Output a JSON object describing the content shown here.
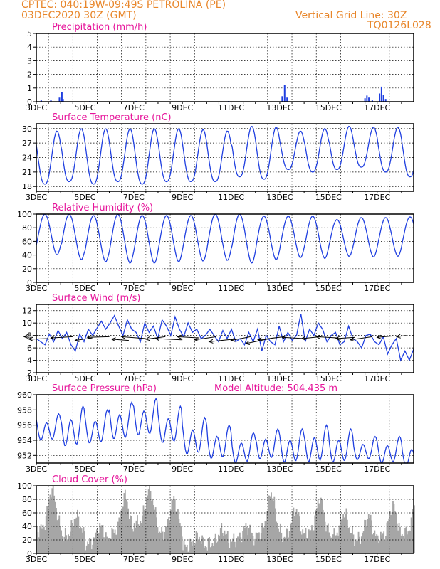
{
  "header": {
    "line1_left": "CPTEC:   040:19W-09:49S   PETROLINA (PE)",
    "line2_left": "03DEC2020 30Z (GMT)",
    "line1_right": "Vertical Grid Line: 30Z",
    "line2_right": "TQ0126L028"
  },
  "colors": {
    "header": "#e8862a",
    "panel_title": "#e6149a",
    "line": "#1f3fe0",
    "bar": "#a6a6a6"
  },
  "panels": {
    "precip": {
      "title": "Precipitation (mm/h)"
    },
    "temp": {
      "title": "Surface Temperature (nC)"
    },
    "rh": {
      "title": "Relative Humidity (%)"
    },
    "wind": {
      "title": "Surface Wind (m/s)"
    },
    "pres": {
      "title": "Surface Pressure (hPa)",
      "extra": "Model Altitude: 504.435 m"
    },
    "cloud": {
      "title": "Cloud Cover (%)"
    }
  },
  "chart_data": [
    {
      "type": "bar",
      "title": "Precipitation (mm/h)",
      "ylim": [
        0,
        5
      ],
      "yticks": [
        "0",
        "1",
        "2",
        "3",
        "4",
        "5"
      ],
      "xlim": [
        3,
        18.5
      ],
      "xtick_labels": [
        "3DEC",
        "5DEC",
        "7DEC",
        "9DEC",
        "11DEC",
        "13DEC",
        "15DEC",
        "17DEC"
      ],
      "grid": true,
      "bars": [
        [
          3.2,
          0.1
        ],
        [
          3.6,
          0.15
        ],
        [
          3.95,
          0.3
        ],
        [
          4.05,
          0.7
        ],
        [
          4.1,
          0.2
        ],
        [
          5.2,
          0.05
        ],
        [
          7.1,
          0.05
        ],
        [
          10.9,
          0.05
        ],
        [
          13.1,
          0.4
        ],
        [
          13.2,
          1.2
        ],
        [
          13.3,
          0.3
        ],
        [
          16.5,
          0.25
        ],
        [
          16.58,
          0.45
        ],
        [
          16.66,
          0.3
        ],
        [
          16.8,
          0.1
        ],
        [
          17.1,
          0.6
        ],
        [
          17.18,
          1.1
        ],
        [
          17.26,
          0.5
        ],
        [
          17.35,
          0.2
        ]
      ]
    },
    {
      "type": "line",
      "title": "Surface Temperature (nC)",
      "ylim": [
        17,
        31
      ],
      "yticks": [
        "18",
        "21",
        "24",
        "27",
        "30"
      ],
      "xlim": [
        3,
        18.5
      ],
      "xtick_labels": [
        "3DEC",
        "5DEC",
        "7DEC",
        "9DEC",
        "11DEC",
        "13DEC",
        "15DEC",
        "17DEC"
      ],
      "grid": true,
      "days_max": [
        29.5,
        30.0,
        30.0,
        30.0,
        30.0,
        30.0,
        29.8,
        29.5,
        30.5,
        30.3,
        29.5,
        30.0,
        30.5,
        30.3,
        30.3,
        30.5
      ],
      "days_min": [
        18.5,
        19.0,
        18.5,
        19.0,
        18.5,
        19.0,
        19.0,
        19.0,
        20.0,
        19.5,
        21.5,
        21.0,
        21.5,
        22.0,
        21.0,
        20.0
      ]
    },
    {
      "type": "line",
      "title": "Relative Humidity (%)",
      "ylim": [
        0,
        100
      ],
      "yticks": [
        "0",
        "20",
        "40",
        "60",
        "80",
        "100"
      ],
      "xlim": [
        3,
        18.5
      ],
      "xtick_labels": [
        "3DEC",
        "5DEC",
        "7DEC",
        "9DEC",
        "11DEC",
        "13DEC",
        "15DEC",
        "17DEC"
      ],
      "grid": true,
      "days_max": [
        100,
        100,
        98,
        100,
        98,
        98,
        98,
        100,
        100,
        97,
        97,
        97,
        92,
        95,
        95,
        96
      ],
      "days_min": [
        40,
        33,
        30,
        28,
        28,
        30,
        31,
        32,
        28,
        33,
        36,
        35,
        38,
        37,
        38,
        40
      ]
    },
    {
      "type": "line",
      "title": "Surface Wind (m/s)",
      "ylim": [
        2,
        13
      ],
      "yticks": [
        "2",
        "4",
        "6",
        "8",
        "10",
        "12"
      ],
      "xlim": [
        3,
        18.5
      ],
      "xtick_labels": [
        "3DEC",
        "5DEC",
        "7DEC",
        "9DEC",
        "11DEC",
        "13DEC",
        "15DEC",
        "17DEC"
      ],
      "grid": true,
      "speed": [
        7.5,
        7.0,
        6.5,
        8.2,
        7.0,
        8.8,
        7.5,
        8.5,
        6.5,
        5.5,
        8.2,
        7.0,
        9.0,
        8.0,
        9.2,
        10.3,
        9.0,
        10.0,
        11.2,
        9.5,
        8.0,
        10.5,
        9.0,
        8.5,
        7.0,
        10.0,
        8.5,
        9.5,
        7.5,
        10.5,
        9.5,
        8.0,
        11.0,
        9.0,
        7.8,
        10.0,
        8.5,
        9.0,
        7.5,
        8.0,
        9.0,
        8.0,
        7.0,
        8.8,
        7.5,
        9.0,
        7.0,
        7.5,
        6.5,
        8.5,
        7.0,
        9.0,
        5.5,
        8.0,
        7.0,
        6.5,
        9.5,
        7.0,
        8.5,
        7.2,
        8.0,
        11.5,
        7.0,
        9.0,
        8.0,
        10.0,
        9.0,
        7.0,
        8.0,
        8.5,
        6.5,
        7.0,
        9.5,
        7.5,
        7.0,
        6.0,
        8.0,
        8.2,
        7.0,
        6.5,
        7.8,
        5.0,
        6.5,
        7.5,
        4.0,
        5.5,
        4.0,
        5.8
      ],
      "arrows": [
        [
          3.1,
          8.0,
          -0.6,
          -0.2
        ],
        [
          3.5,
          7.5,
          -0.8,
          -0.1
        ],
        [
          4.5,
          7.8,
          -0.9,
          -0.2
        ],
        [
          5.3,
          7.6,
          -0.7,
          -0.4
        ],
        [
          6.0,
          7.8,
          -0.9,
          -0.1
        ],
        [
          6.8,
          7.2,
          -0.7,
          0.2
        ],
        [
          7.5,
          7.5,
          -1.0,
          0.3
        ],
        [
          8.3,
          7.8,
          -0.8,
          -0.4
        ],
        [
          9.0,
          7.3,
          -1.1,
          0.2
        ],
        [
          9.7,
          7.6,
          -0.9,
          0.2
        ],
        [
          10.4,
          7.8,
          -0.9,
          -0.5
        ],
        [
          11.1,
          7.4,
          -1.0,
          -0.4
        ],
        [
          11.8,
          7.8,
          -0.8,
          -0.6
        ],
        [
          12.6,
          7.5,
          -1.0,
          -0.8
        ],
        [
          13.2,
          7.8,
          -1.1,
          -0.5
        ],
        [
          14.0,
          7.5,
          -0.9,
          0.2
        ],
        [
          14.7,
          7.8,
          -0.8,
          -0.3
        ],
        [
          15.4,
          7.6,
          -0.9,
          0.2
        ],
        [
          16.1,
          7.7,
          -0.8,
          -0.2
        ],
        [
          16.8,
          7.8,
          -0.9,
          -0.5
        ],
        [
          17.6,
          7.9,
          -0.6,
          -0.2
        ],
        [
          18.2,
          8.0,
          -0.4,
          -0.2
        ]
      ]
    },
    {
      "type": "line",
      "title": "Surface Pressure (hPa)",
      "ylim": [
        951,
        960
      ],
      "yticks": [
        "952",
        "954",
        "956",
        "958",
        "960"
      ],
      "xlim": [
        3,
        18.5
      ],
      "xtick_labels": [
        "3DEC",
        "5DEC",
        "7DEC",
        "9DEC",
        "11DEC",
        "13DEC",
        "15DEC",
        "17DEC"
      ],
      "grid": true,
      "days_max": [
        957.5,
        958.5,
        958.0,
        959.0,
        959.5,
        958.5,
        957.0,
        956.0,
        955.0,
        955.5,
        955.5,
        956.0,
        955.5,
        954.5,
        954.5,
        954.0
      ],
      "days_min": [
        953.5,
        952.5,
        953.0,
        953.5,
        954.0,
        953.0,
        951.5,
        951.0,
        950.5,
        951.0,
        950.5,
        950.5,
        950.5,
        951.0,
        950.5,
        950.0
      ]
    },
    {
      "type": "bar",
      "title": "Cloud Cover (%)",
      "ylim": [
        0,
        100
      ],
      "yticks": [
        "0",
        "20",
        "40",
        "60",
        "80",
        "100"
      ],
      "xlim": [
        3,
        18.5
      ],
      "xtick_labels": [
        "3DEC",
        "5DEC",
        "7DEC",
        "9DEC",
        "11DEC",
        "13DEC",
        "15DEC",
        "17DEC"
      ],
      "grid": true,
      "daily_peak": [
        95,
        55,
        40,
        85,
        95,
        80,
        25,
        35,
        40,
        90,
        65,
        80,
        60,
        55,
        70,
        90
      ],
      "daily_base": [
        35,
        25,
        15,
        30,
        45,
        30,
        10,
        15,
        20,
        30,
        25,
        30,
        25,
        20,
        25,
        30
      ]
    }
  ]
}
